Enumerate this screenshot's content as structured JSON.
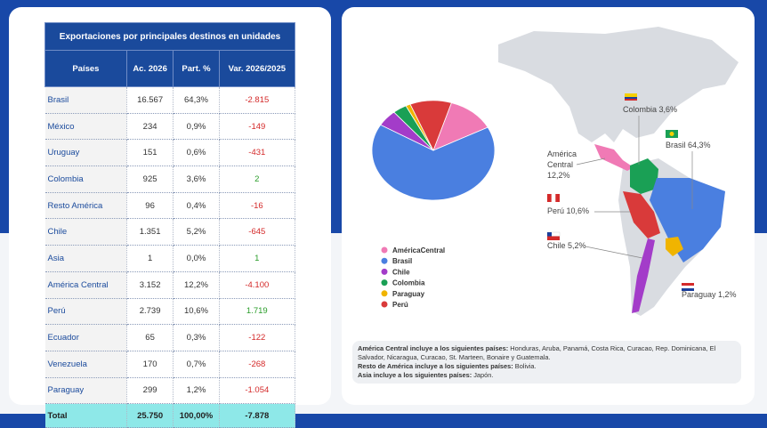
{
  "table": {
    "title": "Exportaciones por principales destinos en unidades",
    "columns": [
      "Países",
      "Ac. 2026",
      "Part. %",
      "Var. 2026/2025"
    ],
    "rows": [
      [
        "Brasil",
        "16.567",
        "64,3%",
        "-2.815"
      ],
      [
        "México",
        "234",
        "0,9%",
        "-149"
      ],
      [
        "Uruguay",
        "151",
        "0,6%",
        "-431"
      ],
      [
        "Colombia",
        "925",
        "3,6%",
        "2"
      ],
      [
        "Resto América",
        "96",
        "0,4%",
        "-16"
      ],
      [
        "Chile",
        "1.351",
        "5,2%",
        "-645"
      ],
      [
        "Asia",
        "1",
        "0,0%",
        "1"
      ],
      [
        "América Central",
        "3.152",
        "12,2%",
        "-4.100"
      ],
      [
        "Perú",
        "2.739",
        "10,6%",
        "1.719"
      ],
      [
        "Ecuador",
        "65",
        "0,3%",
        "-122"
      ],
      [
        "Venezuela",
        "170",
        "0,7%",
        "-268"
      ],
      [
        "Paraguay",
        "299",
        "1,2%",
        "-1.054"
      ]
    ],
    "total": [
      "Total",
      "25.750",
      "100,00%",
      "-7.878"
    ]
  },
  "chart_data": {
    "type": "pie",
    "categories": [
      "AméricaCentral",
      "Brasil",
      "Chile",
      "Colombia",
      "Paraguay",
      "Perú"
    ],
    "values": [
      12.2,
      64.3,
      5.2,
      3.6,
      1.2,
      10.6
    ],
    "colors": [
      "#f07ab5",
      "#4a7fe0",
      "#a33cc9",
      "#1aa055",
      "#f0b400",
      "#d93a3a"
    ]
  },
  "map": {
    "labels": [
      "Colombia 3,6%",
      "Brasil 64,3%",
      "América",
      "Central",
      "12,2%",
      "Perú 10,6%",
      "Chile 5,2%",
      "Paraguay 1,2%"
    ]
  },
  "notes": [
    {
      "bold": "América Central incluye a los siguientes países:",
      "text": " Honduras, Aruba, Panamá, Costa Rica, Curacao, Rep. Dominicana, El Salvador, Nicaragua, Curacao, St. Marteen, Bonaire y Guatemala."
    },
    {
      "bold": "Resto de América incluye a los siguientes países:",
      "text": " Bolivia."
    },
    {
      "bold": "Asia incluye a los siguientes países:",
      "text": " Japón."
    }
  ]
}
